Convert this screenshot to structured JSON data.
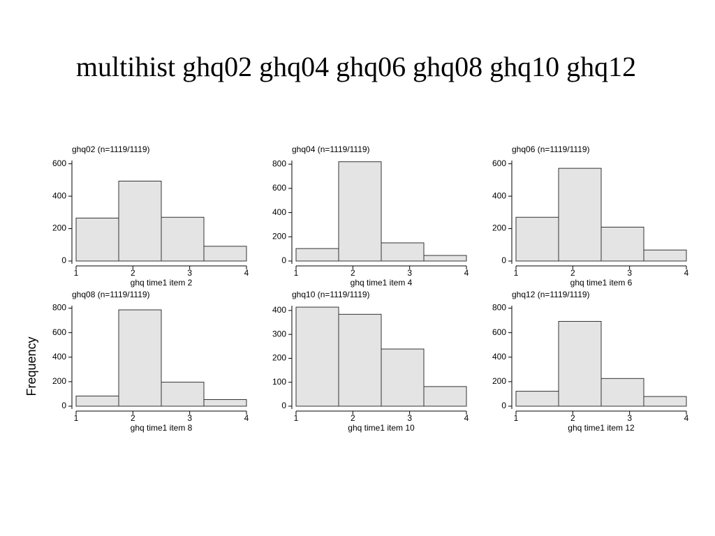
{
  "title": "multihist ghq02 ghq04 ghq06 ghq08 ghq10 ghq12",
  "ylabel": "Frequency",
  "chart_data": [
    {
      "type": "histogram",
      "title": "ghq02 (n=1119/1119)",
      "xlabel": "ghq time1 item 2",
      "bins": [
        1,
        1.75,
        2.5,
        3.25,
        4
      ],
      "counts": [
        265,
        493,
        270,
        91
      ],
      "color": "#e4e4e4",
      "xlim": [
        1,
        4
      ],
      "xticks": [
        1,
        2,
        3,
        4
      ],
      "ylim": [
        0,
        620
      ],
      "yticks": [
        0,
        200,
        400,
        600
      ]
    },
    {
      "type": "histogram",
      "title": "ghq04 (n=1119/1119)",
      "xlabel": "ghq time1 item 4",
      "bins": [
        1,
        1.75,
        2.5,
        3.25,
        4
      ],
      "counts": [
        103,
        820,
        150,
        46
      ],
      "color": "#e4e4e4",
      "xlim": [
        1,
        4
      ],
      "xticks": [
        1,
        2,
        3,
        4
      ],
      "ylim": [
        0,
        830
      ],
      "yticks": [
        0,
        200,
        400,
        600,
        800
      ]
    },
    {
      "type": "histogram",
      "title": "ghq06 (n=1119/1119)",
      "xlabel": "ghq time1 item 6",
      "bins": [
        1,
        1.75,
        2.5,
        3.25,
        4
      ],
      "counts": [
        270,
        572,
        209,
        68
      ],
      "color": "#e4e4e4",
      "xlim": [
        1,
        4
      ],
      "xticks": [
        1,
        2,
        3,
        4
      ],
      "ylim": [
        0,
        620
      ],
      "yticks": [
        0,
        200,
        400,
        600
      ]
    },
    {
      "type": "histogram",
      "title": "ghq08 (n=1119/1119)",
      "xlabel": "ghq time1 item 8",
      "bins": [
        1,
        1.75,
        2.5,
        3.25,
        4
      ],
      "counts": [
        83,
        786,
        196,
        54
      ],
      "color": "#e4e4e4",
      "xlim": [
        1,
        4
      ],
      "xticks": [
        1,
        2,
        3,
        4
      ],
      "ylim": [
        0,
        820
      ],
      "yticks": [
        0,
        200,
        400,
        600,
        800
      ]
    },
    {
      "type": "histogram",
      "title": "ghq10 (n=1119/1119)",
      "xlabel": "ghq time1 item 10",
      "bins": [
        1,
        1.75,
        2.5,
        3.25,
        4
      ],
      "counts": [
        414,
        384,
        239,
        82
      ],
      "color": "#e4e4e4",
      "xlim": [
        1,
        4
      ],
      "xticks": [
        1,
        2,
        3,
        4
      ],
      "ylim": [
        0,
        420
      ],
      "yticks": [
        0,
        100,
        200,
        300,
        400
      ]
    },
    {
      "type": "histogram",
      "title": "ghq12 (n=1119/1119)",
      "xlabel": "ghq time1 item 12",
      "bins": [
        1,
        1.75,
        2.5,
        3.25,
        4
      ],
      "counts": [
        122,
        692,
        226,
        79
      ],
      "color": "#e4e4e4",
      "xlim": [
        1,
        4
      ],
      "xticks": [
        1,
        2,
        3,
        4
      ],
      "ylim": [
        0,
        820
      ],
      "yticks": [
        0,
        200,
        400,
        600,
        800
      ]
    }
  ]
}
